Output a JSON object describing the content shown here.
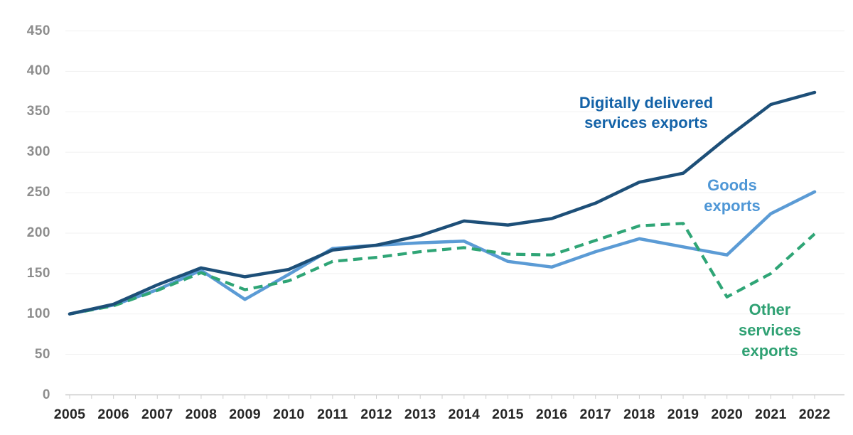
{
  "chart_data": {
    "type": "line",
    "title": "",
    "x_labels": [
      "2005",
      "2006",
      "2007",
      "2008",
      "2009",
      "2010",
      "2011",
      "2012",
      "2013",
      "2014",
      "2015",
      "2016",
      "2017",
      "2018",
      "2019",
      "2020",
      "2021",
      "2022"
    ],
    "y_ticks": [
      "0",
      "50",
      "100",
      "150",
      "200",
      "250",
      "300",
      "350",
      "400",
      "450"
    ],
    "ylim": [
      0,
      450
    ],
    "grid": "horizontal-light",
    "legend_position": "inline-annotations",
    "series": [
      {
        "id": "digital",
        "name": "Digitally delivered services exports",
        "label_lines": [
          "Digitally delivered",
          "services exports"
        ],
        "color": "#1d4f78",
        "label_color": "#1463a8",
        "line_style": "solid",
        "values": [
          100,
          112,
          136,
          157,
          146,
          155,
          179,
          185,
          197,
          215,
          210,
          218,
          237,
          263,
          274,
          318,
          359,
          374
        ]
      },
      {
        "id": "goods",
        "name": "Goods exports",
        "label_lines": [
          "Goods",
          "exports"
        ],
        "color": "#5b9bd5",
        "label_color": "#4f97d6",
        "line_style": "solid",
        "values": [
          100,
          111,
          130,
          154,
          118,
          149,
          181,
          185,
          188,
          190,
          165,
          158,
          177,
          193,
          183,
          173,
          224,
          251
        ]
      },
      {
        "id": "other-services",
        "name": "Other services exports",
        "label_lines": [
          "Other",
          "services",
          "exports"
        ],
        "color": "#2fa576",
        "label_color": "#2fa173",
        "line_style": "dashed",
        "values": [
          100,
          110,
          129,
          151,
          130,
          141,
          165,
          170,
          177,
          182,
          174,
          173,
          191,
          209,
          212,
          121,
          150,
          199
        ]
      }
    ],
    "axis_style": {
      "grid_color": "#f1f1f1",
      "baseline_color": "#c9c9c9",
      "tick_color": "#cfcfcf",
      "y_label_color": "#8d8d8d",
      "x_label_color": "#262626"
    }
  }
}
